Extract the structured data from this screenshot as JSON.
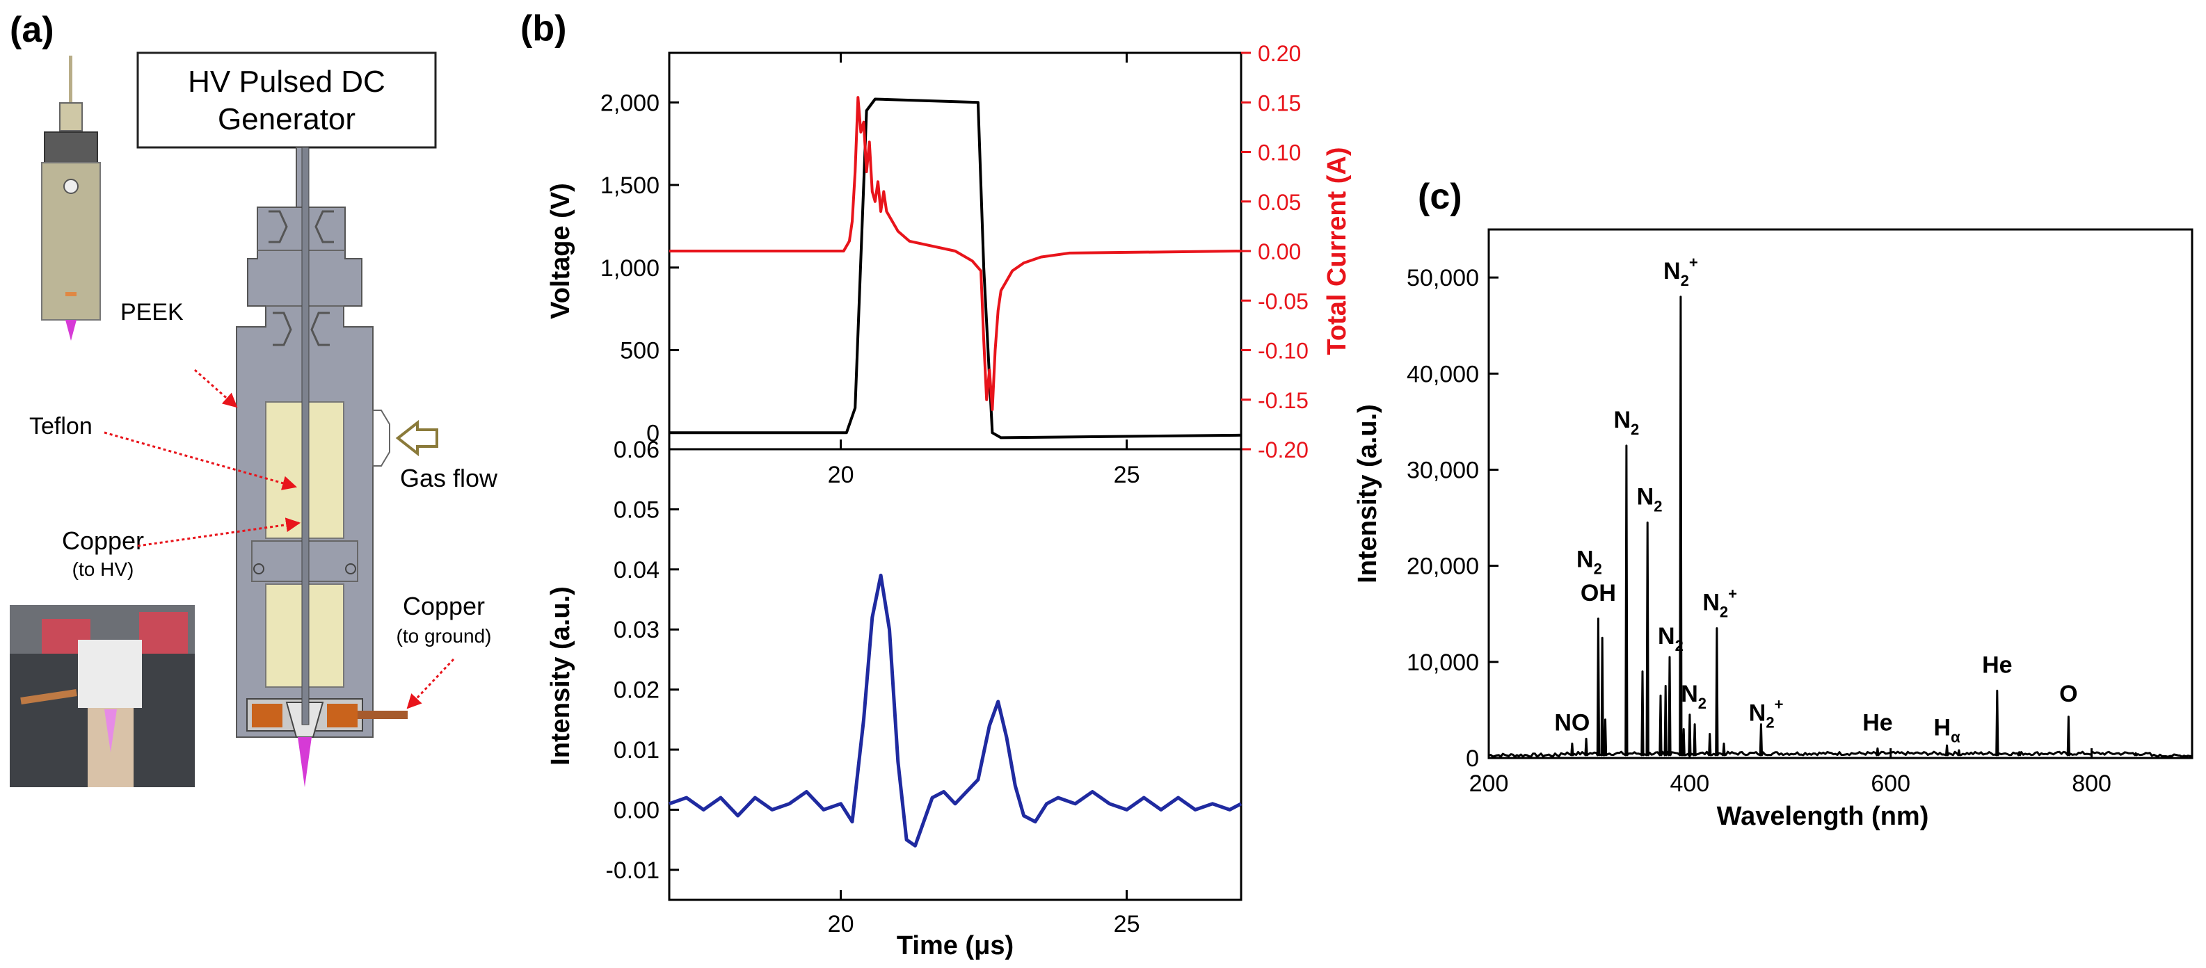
{
  "panels": {
    "a": {
      "label": "(a)",
      "generator_line1": "HV Pulsed DC",
      "generator_line2": "Generator",
      "labels": {
        "peek": "PEEK",
        "teflon": "Teflon",
        "gas_flow": "Gas flow",
        "copper_hv": "Copper",
        "copper_hv_sub": "(to HV)",
        "copper_ground": "Copper",
        "copper_ground_sub": "(to ground)"
      }
    },
    "b": {
      "label": "(b)"
    },
    "c": {
      "label": "(c)"
    }
  },
  "colors": {
    "voltage": "#000000",
    "current": "#e8141b",
    "intensity_b": "#1f2aa0",
    "spectrum": "#000000",
    "plasma": "#d63ad6",
    "peek": "#9a9eac",
    "teflon": "#ebe6b8",
    "copper": "#c9631c"
  },
  "chart_data": [
    {
      "id": "b-top",
      "type": "line",
      "xlim": [
        17,
        27
      ],
      "xticks": [
        20,
        25
      ],
      "xticklabels": [
        "20",
        "25"
      ],
      "ylabel": "Voltage (V)",
      "ylim": [
        -100,
        2300
      ],
      "yticks": [
        0,
        500,
        1000,
        1500,
        2000
      ],
      "yticklabels": [
        "0",
        "500",
        "1,000",
        "1,500",
        "2,000"
      ],
      "y2label": "Total Current (A)",
      "y2lim": [
        -0.2,
        0.2
      ],
      "y2ticks": [
        -0.2,
        -0.15,
        -0.1,
        -0.05,
        0.0,
        0.05,
        0.1,
        0.15,
        0.2
      ],
      "y2ticklabels": [
        "-0.20",
        "-0.15",
        "-0.10",
        "-0.05",
        "0.00",
        "0.05",
        "0.10",
        "0.15",
        "0.20"
      ],
      "series": [
        {
          "name": "Voltage",
          "axis": "left",
          "x": [
            17.0,
            20.1,
            20.25,
            20.45,
            20.6,
            21.5,
            22.4,
            22.5,
            22.65,
            22.8,
            27.0
          ],
          "y": [
            0,
            0,
            150,
            1950,
            2020,
            2010,
            2000,
            1000,
            0,
            -30,
            -15
          ]
        },
        {
          "name": "Total Current",
          "axis": "right",
          "x": [
            17.0,
            20.05,
            20.15,
            20.2,
            20.25,
            20.3,
            20.35,
            20.4,
            20.45,
            20.5,
            20.55,
            20.6,
            20.65,
            20.7,
            20.75,
            20.8,
            20.9,
            21.0,
            21.2,
            22.0,
            22.3,
            22.45,
            22.5,
            22.55,
            22.6,
            22.65,
            22.7,
            22.75,
            22.8,
            22.9,
            23.0,
            23.2,
            23.5,
            24.0,
            27.0
          ],
          "y": [
            0.0,
            0.0,
            0.01,
            0.03,
            0.08,
            0.155,
            0.12,
            0.13,
            0.08,
            0.11,
            0.06,
            0.05,
            0.07,
            0.04,
            0.06,
            0.04,
            0.03,
            0.02,
            0.01,
            0.0,
            -0.01,
            -0.02,
            -0.09,
            -0.15,
            -0.12,
            -0.16,
            -0.1,
            -0.06,
            -0.04,
            -0.03,
            -0.02,
            -0.012,
            -0.006,
            -0.002,
            0.0
          ]
        }
      ]
    },
    {
      "id": "b-bottom",
      "type": "line",
      "xlabel": "Time (μs)",
      "xlim": [
        17,
        27
      ],
      "xticks": [
        20,
        25
      ],
      "xticklabels": [
        "20",
        "25"
      ],
      "ylabel": "Intensity (a.u.)",
      "ylim": [
        -0.015,
        0.06
      ],
      "yticks": [
        -0.01,
        0.0,
        0.01,
        0.02,
        0.03,
        0.04,
        0.05,
        0.06
      ],
      "yticklabels": [
        "-0.01",
        "0.00",
        "0.01",
        "0.02",
        "0.03",
        "0.04",
        "0.05",
        "0.06"
      ],
      "series": [
        {
          "name": "Intensity",
          "x": [
            17.0,
            17.3,
            17.6,
            17.9,
            18.2,
            18.5,
            18.8,
            19.1,
            19.4,
            19.7,
            20.0,
            20.2,
            20.4,
            20.55,
            20.7,
            20.85,
            21.0,
            21.15,
            21.3,
            21.45,
            21.6,
            21.8,
            22.0,
            22.2,
            22.4,
            22.6,
            22.75,
            22.9,
            23.05,
            23.2,
            23.4,
            23.6,
            23.8,
            24.1,
            24.4,
            24.7,
            25.0,
            25.3,
            25.6,
            25.9,
            26.2,
            26.5,
            26.8,
            27.0
          ],
          "y": [
            0.001,
            0.002,
            0.0,
            0.002,
            -0.001,
            0.002,
            0.0,
            0.001,
            0.003,
            0.0,
            0.001,
            -0.002,
            0.015,
            0.032,
            0.039,
            0.03,
            0.008,
            -0.005,
            -0.006,
            -0.002,
            0.002,
            0.003,
            0.001,
            0.003,
            0.005,
            0.014,
            0.018,
            0.012,
            0.004,
            -0.001,
            -0.002,
            0.001,
            0.002,
            0.001,
            0.003,
            0.001,
            0.0,
            0.002,
            0.0,
            0.002,
            0.0,
            0.001,
            0.0,
            0.001
          ]
        }
      ]
    },
    {
      "id": "c",
      "type": "line",
      "xlabel": "Wavelength (nm)",
      "xlim": [
        200,
        900
      ],
      "xticks": [
        200,
        400,
        600,
        800
      ],
      "xticklabels": [
        "200",
        "400",
        "600",
        "800"
      ],
      "ylabel": "Intensity (a.u.)",
      "ylim": [
        0,
        55000
      ],
      "yticks": [
        0,
        10000,
        20000,
        30000,
        40000,
        50000
      ],
      "yticklabels": [
        "0",
        "10,000",
        "20,000",
        "30,000",
        "40,000",
        "50,000"
      ],
      "peaks": [
        {
          "x": 283,
          "y": 1500
        },
        {
          "x": 297,
          "y": 2000
        },
        {
          "x": 309,
          "y": 14500
        },
        {
          "x": 313,
          "y": 12500
        },
        {
          "x": 316,
          "y": 4000
        },
        {
          "x": 337,
          "y": 32500
        },
        {
          "x": 353,
          "y": 9000
        },
        {
          "x": 358,
          "y": 24500
        },
        {
          "x": 371,
          "y": 6500
        },
        {
          "x": 376,
          "y": 7500
        },
        {
          "x": 380,
          "y": 10500
        },
        {
          "x": 391,
          "y": 48000
        },
        {
          "x": 394,
          "y": 3000
        },
        {
          "x": 400,
          "y": 4500
        },
        {
          "x": 405,
          "y": 3500
        },
        {
          "x": 420,
          "y": 2500
        },
        {
          "x": 427,
          "y": 13500
        },
        {
          "x": 434,
          "y": 1500
        },
        {
          "x": 471,
          "y": 3500
        },
        {
          "x": 587,
          "y": 1000
        },
        {
          "x": 656,
          "y": 1300
        },
        {
          "x": 668,
          "y": 800
        },
        {
          "x": 706,
          "y": 7000
        },
        {
          "x": 728,
          "y": 600
        },
        {
          "x": 777,
          "y": 4300
        },
        {
          "x": 844,
          "y": 500
        }
      ],
      "annotations": [
        {
          "text": "NO",
          "sub": "",
          "sup": "",
          "x": 283,
          "y": 2000
        },
        {
          "text": "OH",
          "sub": "",
          "sup": "",
          "x": 309,
          "y": 15500
        },
        {
          "text": "N",
          "sub": "2",
          "sup": "",
          "x": 300,
          "y": 19000
        },
        {
          "text": "N",
          "sub": "2",
          "sup": "",
          "x": 337,
          "y": 33500
        },
        {
          "text": "N",
          "sub": "2",
          "sup": "",
          "x": 360,
          "y": 25500
        },
        {
          "text": "N",
          "sub": "2",
          "sup": "+",
          "x": 391,
          "y": 49000
        },
        {
          "text": "N",
          "sub": "2",
          "sup": "",
          "x": 381,
          "y": 11000
        },
        {
          "text": "N",
          "sub": "2",
          "sup": "",
          "x": 404,
          "y": 5000
        },
        {
          "text": "N",
          "sub": "2",
          "sup": "+",
          "x": 430,
          "y": 14500
        },
        {
          "text": "N",
          "sub": "2",
          "sup": "+",
          "x": 476,
          "y": 3000
        },
        {
          "text": "He",
          "sub": "",
          "sup": "",
          "x": 587,
          "y": 2000
        },
        {
          "text": "H",
          "sub": "α",
          "sup": "",
          "x": 656,
          "y": 1500
        },
        {
          "text": "He",
          "sub": "",
          "sup": "",
          "x": 706,
          "y": 8000
        },
        {
          "text": "O",
          "sub": "",
          "sup": "",
          "x": 777,
          "y": 5000
        }
      ]
    }
  ]
}
